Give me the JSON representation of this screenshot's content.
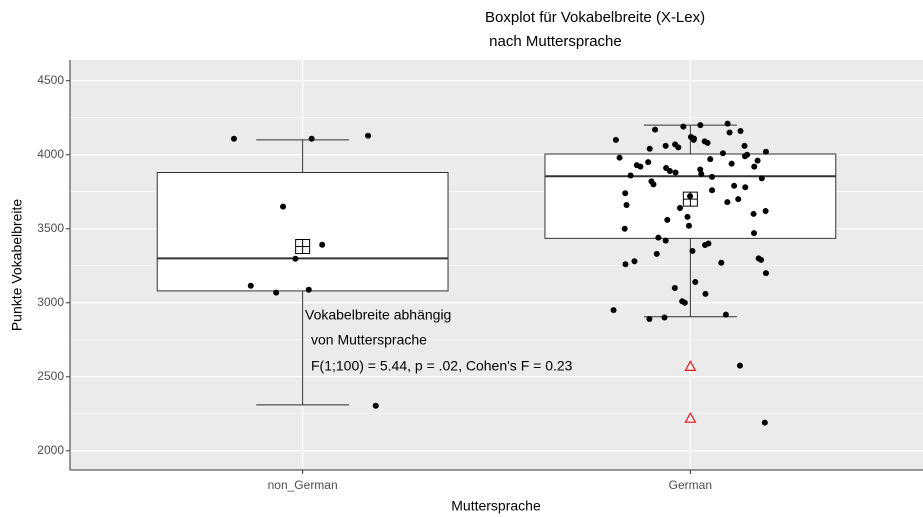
{
  "chart_data": {
    "type": "boxplot",
    "title": [
      "Boxplot für Vokabelbreite (X-Lex)",
      " nach Muttersprache"
    ],
    "x_label": "Muttersprache",
    "y_label": "Punkte Vokabelbreite",
    "categories": [
      "non_German",
      "German"
    ],
    "ylim": [
      1870,
      4640
    ],
    "yticks": [
      2000,
      2500,
      3000,
      3500,
      4000,
      4500
    ],
    "grid": true,
    "boxes": [
      {
        "whisker_low": 2310,
        "q1": 3080,
        "median": 3300,
        "q3": 3880,
        "whisker_high": 4100,
        "mean": 3380,
        "outliers": [],
        "points": [
          4128,
          4108,
          4108,
          3649,
          3297,
          3392,
          3115,
          3068,
          3088,
          2304
        ]
      },
      {
        "whisker_low": 2905,
        "q1": 3435,
        "median": 3855,
        "q3": 4005,
        "whisker_high": 4200,
        "mean": 3700,
        "outliers": [
          2570,
          2220
        ],
        "points": [
          4210,
          4200,
          4190,
          4170,
          4160,
          4150,
          4120,
          4110,
          4100,
          4100,
          4090,
          4080,
          4070,
          4060,
          4060,
          4050,
          4040,
          4020,
          4010,
          4000,
          3990,
          3980,
          3970,
          3960,
          3950,
          3940,
          3930,
          3920,
          3920,
          3910,
          3900,
          3890,
          3880,
          3870,
          3860,
          3850,
          3840,
          3820,
          3800,
          3790,
          3780,
          3760,
          3740,
          3720,
          3700,
          3680,
          3660,
          3640,
          3620,
          3600,
          3580,
          3560,
          3520,
          3500,
          3470,
          3440,
          3420,
          3400,
          3390,
          3350,
          3330,
          3300,
          3290,
          3280,
          3270,
          3260,
          3200,
          3140,
          3100,
          3060,
          3010,
          3000,
          2950,
          2920,
          2900,
          2890,
          2575,
          2190
        ]
      }
    ],
    "outlier_color": "#e41a1c",
    "annotation": [
      "Vokabelbreite abhängig",
      "von Muttersprache",
      "F(1;100) = 5.44, p = .02, Cohen's F = 0.23"
    ]
  }
}
